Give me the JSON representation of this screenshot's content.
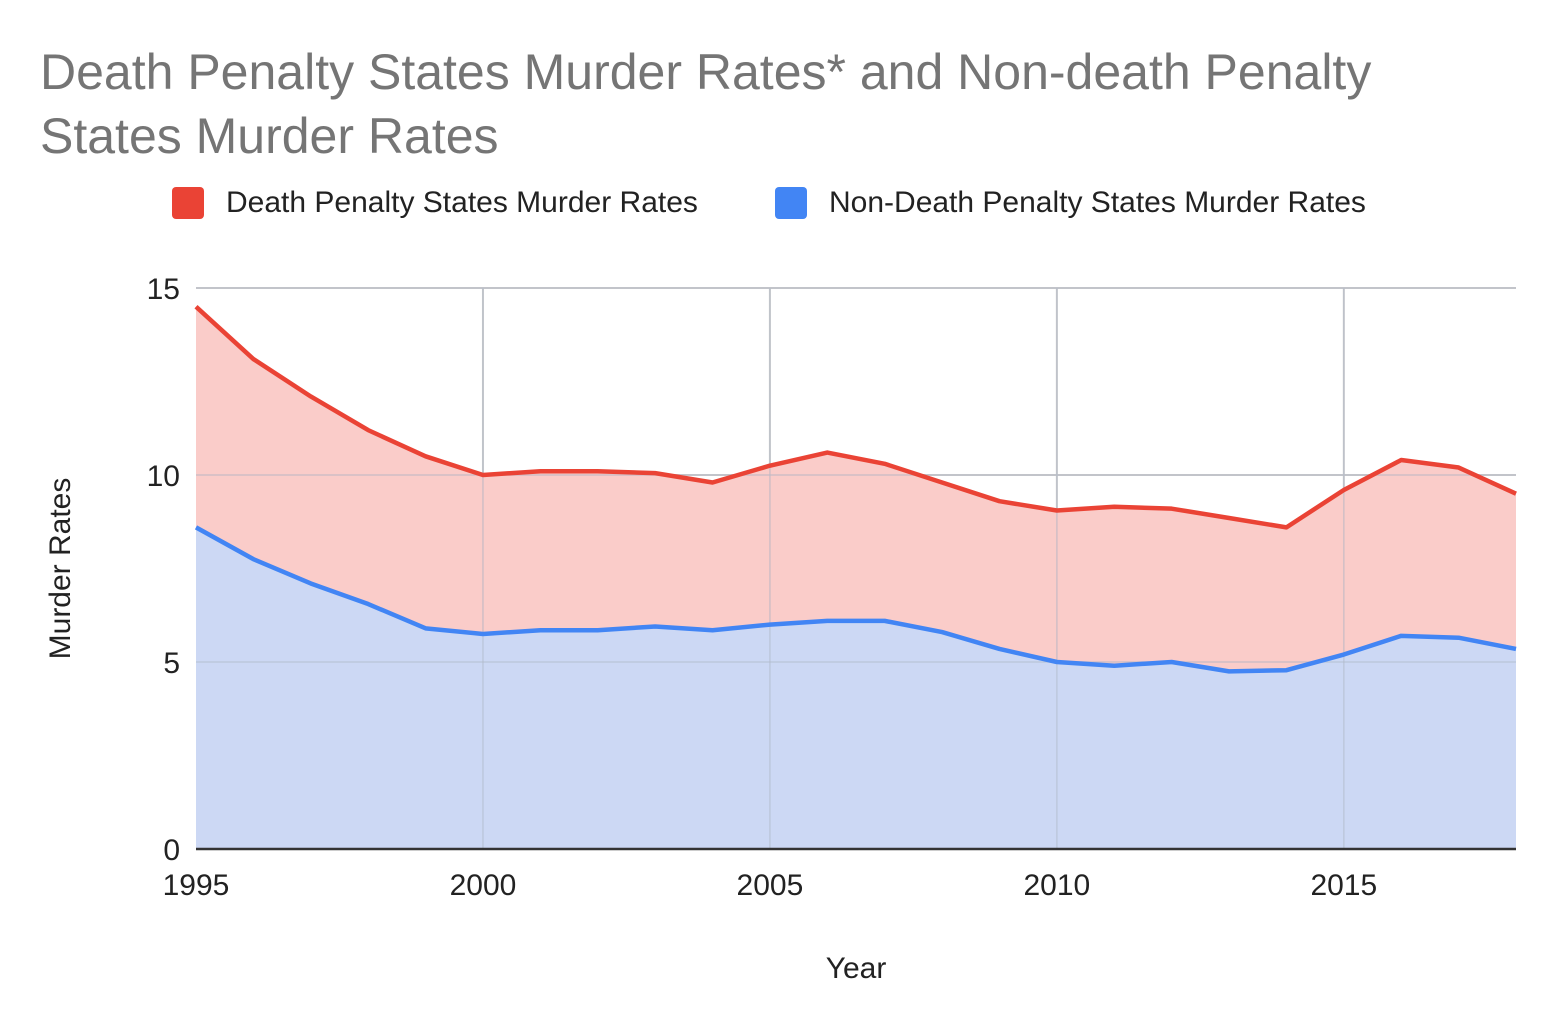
{
  "chart_data": {
    "type": "area",
    "title": "Death Penalty States Murder Rates* and Non-death Penalty States Murder Rates",
    "xlabel": "Year",
    "ylabel": "Murder Rates",
    "ylim": [
      0,
      15
    ],
    "xlim": [
      1995,
      2018
    ],
    "y_ticks": [
      "0",
      "5",
      "10",
      "15"
    ],
    "x_ticks": [
      "1995",
      "2000",
      "2005",
      "2010",
      "2015"
    ],
    "grid": true,
    "legend_position": "top",
    "x": [
      1995,
      1996,
      1997,
      1998,
      1999,
      2000,
      2001,
      2002,
      2003,
      2004,
      2005,
      2006,
      2007,
      2008,
      2009,
      2010,
      2011,
      2012,
      2013,
      2014,
      2015,
      2016,
      2017,
      2018
    ],
    "series": [
      {
        "name": "Death Penalty States Murder Rates",
        "color": "#ea4335",
        "fill": "#f9c6c3",
        "values": [
          14.5,
          13.1,
          12.1,
          11.2,
          10.5,
          10.0,
          10.1,
          10.1,
          10.05,
          9.8,
          10.25,
          10.6,
          10.3,
          9.8,
          9.3,
          9.05,
          9.15,
          9.1,
          8.85,
          8.6,
          9.6,
          10.4,
          10.2,
          9.5
        ]
      },
      {
        "name": "Non-Death Penalty States Murder Rates",
        "color": "#4285f4",
        "fill": "#c6d9f8",
        "values": [
          8.6,
          7.75,
          7.1,
          6.55,
          5.9,
          5.75,
          5.85,
          5.85,
          5.95,
          5.85,
          6.0,
          6.1,
          6.1,
          5.8,
          5.35,
          5.0,
          4.9,
          5.0,
          4.75,
          4.78,
          5.2,
          5.7,
          5.65,
          5.35
        ]
      }
    ]
  }
}
